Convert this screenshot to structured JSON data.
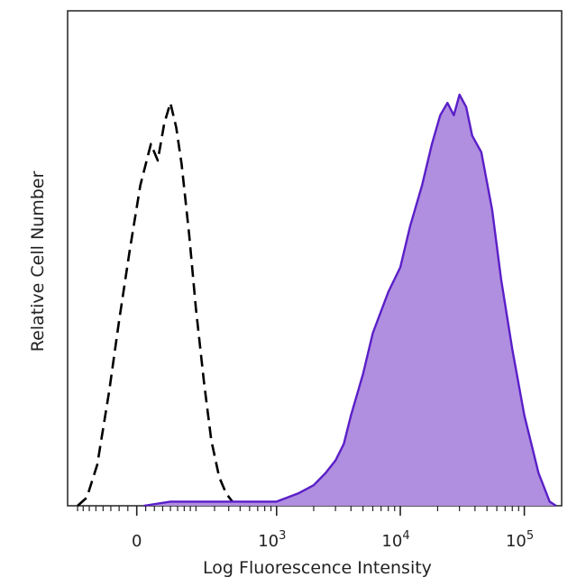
{
  "chart_data": {
    "type": "area",
    "xlabel": "Log Fluorescence Intensity",
    "ylabel": "Relative Cell Number",
    "x_scale": "biexponential",
    "x_ticks": [
      {
        "value": 0,
        "base": "0",
        "exp": ""
      },
      {
        "value": 1000,
        "base": "10",
        "exp": "3"
      },
      {
        "value": 10000,
        "base": "10",
        "exp": "4"
      },
      {
        "value": 100000,
        "base": "10",
        "exp": "5"
      }
    ],
    "ylim": [
      0,
      1
    ],
    "series": [
      {
        "style": "dashed-outline",
        "color": "#000000",
        "points": [
          [
            -200,
            0.0
          ],
          [
            -160,
            0.02
          ],
          [
            -120,
            0.1
          ],
          [
            -80,
            0.28
          ],
          [
            -50,
            0.45
          ],
          [
            -20,
            0.62
          ],
          [
            10,
            0.78
          ],
          [
            40,
            0.88
          ],
          [
            60,
            0.84
          ],
          [
            80,
            0.93
          ],
          [
            100,
            0.98
          ],
          [
            120,
            0.92
          ],
          [
            140,
            0.83
          ],
          [
            170,
            0.66
          ],
          [
            200,
            0.48
          ],
          [
            240,
            0.3
          ],
          [
            280,
            0.16
          ],
          [
            330,
            0.07
          ],
          [
            380,
            0.03
          ],
          [
            430,
            0.01
          ],
          [
            500,
            0.0
          ]
        ]
      },
      {
        "style": "filled",
        "color": "#5a1fc8",
        "fill": "#b08ee0",
        "points": [
          [
            20,
            0.0
          ],
          [
            100,
            0.01
          ],
          [
            300,
            0.01
          ],
          [
            600,
            0.01
          ],
          [
            1000,
            0.01
          ],
          [
            1500,
            0.03
          ],
          [
            2000,
            0.05
          ],
          [
            2500,
            0.08
          ],
          [
            3000,
            0.11
          ],
          [
            3500,
            0.15
          ],
          [
            4000,
            0.22
          ],
          [
            5000,
            0.32
          ],
          [
            6000,
            0.42
          ],
          [
            8000,
            0.52
          ],
          [
            10000,
            0.58
          ],
          [
            12000,
            0.68
          ],
          [
            15000,
            0.78
          ],
          [
            18000,
            0.88
          ],
          [
            21000,
            0.95
          ],
          [
            24000,
            0.98
          ],
          [
            27000,
            0.95
          ],
          [
            30000,
            1.0
          ],
          [
            34000,
            0.97
          ],
          [
            38000,
            0.9
          ],
          [
            45000,
            0.86
          ],
          [
            55000,
            0.72
          ],
          [
            65000,
            0.55
          ],
          [
            80000,
            0.38
          ],
          [
            100000,
            0.22
          ],
          [
            130000,
            0.08
          ],
          [
            160000,
            0.01
          ],
          [
            180000,
            0.0
          ]
        ]
      }
    ]
  }
}
